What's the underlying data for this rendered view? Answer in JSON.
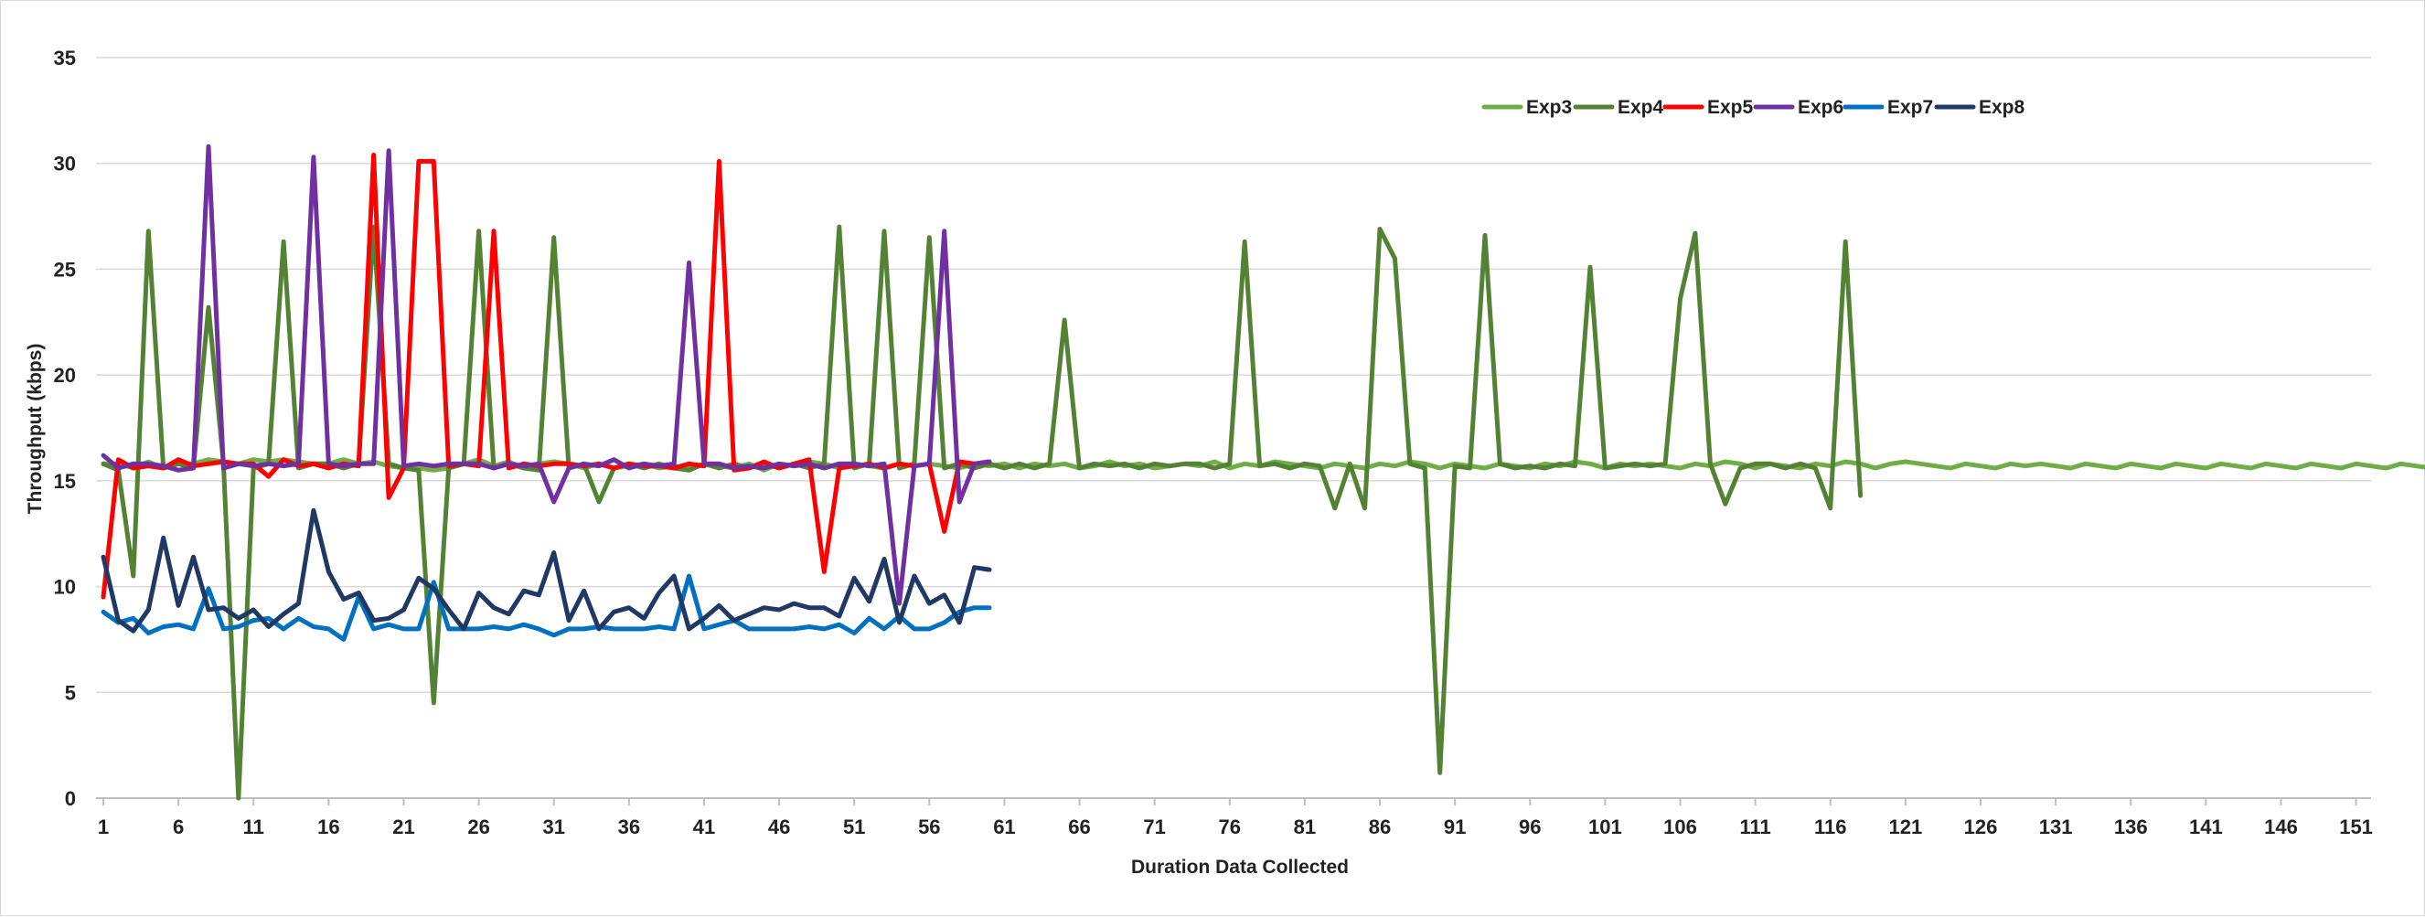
{
  "chart_data": {
    "type": "line",
    "title": "",
    "xlabel": "Duration Data Collected",
    "ylabel": "Throughput (kbps)",
    "xlim": [
      1,
      152
    ],
    "ylim": [
      0,
      35
    ],
    "yticks": [
      "0",
      "5",
      "10",
      "15",
      "20",
      "25",
      "30",
      "35"
    ],
    "xticks": [
      "1",
      "6",
      "11",
      "16",
      "21",
      "26",
      "31",
      "36",
      "41",
      "46",
      "51",
      "56",
      "61",
      "66",
      "71",
      "76",
      "81",
      "86",
      "91",
      "96",
      "101",
      "106",
      "111",
      "116",
      "121",
      "126",
      "131",
      "136",
      "141",
      "146",
      "151"
    ],
    "grid": "horizontal",
    "legend_position": "top-right",
    "series": [
      {
        "name": "Exp3",
        "color": "#70ad47",
        "values": [
          15.8,
          15.8,
          15.6,
          15.9,
          15.6,
          15.8,
          15.8,
          16.0,
          15.9,
          15.8,
          16.0,
          15.9,
          16.0,
          15.9,
          15.8,
          15.8,
          16.0,
          15.8,
          15.9,
          15.7,
          15.6,
          15.6,
          15.5,
          15.6,
          15.8,
          16.0,
          15.7,
          15.9,
          15.6,
          15.8,
          15.9,
          15.8,
          15.6,
          15.8,
          15.6,
          15.7,
          15.8,
          15.6,
          15.7,
          15.6,
          15.8,
          15.7,
          15.6,
          15.8,
          15.5,
          15.8,
          15.7,
          15.9,
          15.8,
          15.6,
          15.8,
          15.7,
          15.6,
          15.8,
          15.7,
          15.8,
          15.7,
          15.6,
          15.8,
          15.7,
          15.8,
          15.6,
          15.8,
          15.7,
          15.8,
          15.6,
          15.7,
          15.9,
          15.7,
          15.8,
          15.6,
          15.7,
          15.8,
          15.7,
          15.9,
          15.6,
          15.8,
          15.7,
          15.9,
          15.8,
          15.7,
          15.6,
          15.8,
          15.7,
          15.6,
          15.8,
          15.7,
          15.9,
          15.8,
          15.6,
          15.8,
          15.7,
          15.6,
          15.8,
          15.7,
          15.6,
          15.8,
          15.7,
          15.9,
          15.8,
          15.6,
          15.8,
          15.7,
          15.8,
          15.7,
          15.6,
          15.8,
          15.7,
          15.9,
          15.8,
          15.6,
          15.8,
          15.7,
          15.6,
          15.8,
          15.7,
          15.9,
          15.8,
          15.6,
          15.8,
          15.9,
          15.8,
          15.7,
          15.6,
          15.8,
          15.7,
          15.6,
          15.8,
          15.7,
          15.8,
          15.7,
          15.6,
          15.8,
          15.7,
          15.6,
          15.8,
          15.7,
          15.6,
          15.8,
          15.7,
          15.6,
          15.8,
          15.7,
          15.6,
          15.8,
          15.7,
          15.6,
          15.8,
          15.7,
          15.6,
          15.8,
          15.7,
          15.6,
          15.8,
          15.7,
          15.6
        ]
      },
      {
        "name": "Exp4",
        "color": "#548235",
        "values": [
          15.8,
          15.5,
          10.5,
          26.8,
          15.6,
          15.8,
          15.6,
          23.2,
          15.8,
          0.0,
          15.6,
          15.8,
          26.3,
          15.6,
          15.8,
          15.8,
          15.6,
          15.8,
          27.0,
          15.8,
          15.6,
          15.5,
          4.5,
          15.6,
          15.8,
          26.8,
          15.6,
          15.8,
          15.6,
          15.5,
          26.5,
          15.6,
          15.8,
          14.0,
          15.6,
          15.8,
          15.6,
          15.8,
          15.6,
          15.5,
          15.8,
          15.6,
          15.8,
          15.6,
          15.8,
          15.6,
          15.8,
          15.6,
          15.8,
          27.0,
          15.6,
          15.8,
          26.8,
          15.6,
          15.8,
          26.5,
          15.6,
          15.8,
          15.6,
          15.8,
          15.6,
          15.8,
          15.6,
          15.8,
          22.6,
          15.6,
          15.8,
          15.7,
          15.8,
          15.6,
          15.8,
          15.7,
          15.8,
          15.8,
          15.6,
          15.8,
          26.3,
          15.7,
          15.8,
          15.6,
          15.8,
          15.7,
          13.7,
          15.8,
          13.7,
          26.9,
          25.5,
          15.8,
          15.6,
          1.2,
          15.7,
          15.6,
          26.6,
          15.8,
          15.6,
          15.7,
          15.6,
          15.8,
          15.7,
          25.1,
          15.6,
          15.7,
          15.8,
          15.7,
          15.8,
          23.6,
          26.7,
          15.8,
          13.9,
          15.6,
          15.8,
          15.8,
          15.6,
          15.8,
          15.6,
          13.7,
          26.3,
          14.3
        ]
      },
      {
        "name": "Exp5",
        "color": "#ff0000",
        "values": [
          9.5,
          16.0,
          15.6,
          15.7,
          15.6,
          16.0,
          15.7,
          15.8,
          15.9,
          15.8,
          15.8,
          15.2,
          16.0,
          15.7,
          15.8,
          15.6,
          15.8,
          15.7,
          30.4,
          14.2,
          15.6,
          30.1,
          30.1,
          15.7,
          15.8,
          15.7,
          26.8,
          15.6,
          15.8,
          15.7,
          15.8,
          15.8,
          15.7,
          15.8,
          15.6,
          15.8,
          15.7,
          15.7,
          15.6,
          15.8,
          15.7,
          30.1,
          15.5,
          15.6,
          15.9,
          15.6,
          15.8,
          16.0,
          10.7,
          15.6,
          15.7,
          15.8,
          15.6,
          15.8,
          15.7,
          15.8,
          12.6,
          15.9,
          15.8,
          15.9
        ]
      },
      {
        "name": "Exp6",
        "color": "#7030a0",
        "values": [
          16.2,
          15.6,
          15.8,
          15.8,
          15.7,
          15.5,
          15.6,
          30.8,
          15.6,
          15.8,
          15.7,
          15.8,
          15.7,
          15.8,
          30.3,
          15.8,
          15.7,
          15.8,
          15.8,
          30.6,
          15.7,
          15.8,
          15.7,
          15.8,
          15.8,
          15.8,
          15.6,
          15.8,
          15.7,
          15.8,
          14.0,
          15.6,
          15.8,
          15.7,
          16.0,
          15.6,
          15.8,
          15.7,
          15.8,
          25.3,
          15.8,
          15.8,
          15.6,
          15.7,
          15.6,
          15.8,
          15.7,
          15.8,
          15.6,
          15.8,
          15.8,
          15.7,
          15.8,
          9.2,
          15.7,
          15.8,
          26.8,
          14.0,
          15.8,
          15.9
        ]
      },
      {
        "name": "Exp7",
        "color": "#0070c0",
        "values": [
          8.8,
          8.3,
          8.5,
          7.8,
          8.1,
          8.2,
          8.0,
          9.9,
          8.0,
          8.1,
          8.4,
          8.5,
          8.0,
          8.5,
          8.1,
          8.0,
          7.5,
          9.5,
          8.0,
          8.2,
          8.0,
          8.0,
          10.2,
          8.0,
          8.0,
          8.0,
          8.1,
          8.0,
          8.2,
          8.0,
          7.7,
          8.0,
          8.0,
          8.1,
          8.0,
          8.0,
          8.0,
          8.1,
          8.0,
          10.5,
          8.0,
          8.2,
          8.4,
          8.0,
          8.0,
          8.0,
          8.0,
          8.1,
          8.0,
          8.2,
          7.8,
          8.5,
          8.0,
          8.6,
          8.0,
          8.0,
          8.3,
          8.8,
          9.0,
          9.0
        ]
      },
      {
        "name": "Exp8",
        "color": "#203864",
        "values": [
          11.4,
          8.4,
          7.9,
          8.9,
          12.3,
          9.1,
          11.4,
          8.9,
          9.0,
          8.5,
          8.9,
          8.1,
          8.7,
          9.2,
          13.6,
          10.7,
          9.4,
          9.7,
          8.4,
          8.5,
          8.9,
          10.4,
          9.9,
          8.9,
          8.0,
          9.7,
          9.0,
          8.7,
          9.8,
          9.6,
          11.6,
          8.4,
          9.8,
          8.0,
          8.8,
          9.0,
          8.5,
          9.7,
          10.5,
          8.0,
          8.5,
          9.1,
          8.4,
          8.7,
          9.0,
          8.9,
          9.2,
          9.0,
          9.0,
          8.6,
          10.4,
          9.3,
          11.3,
          8.3,
          10.5,
          9.2,
          9.6,
          8.3,
          10.9,
          10.8
        ]
      }
    ]
  }
}
